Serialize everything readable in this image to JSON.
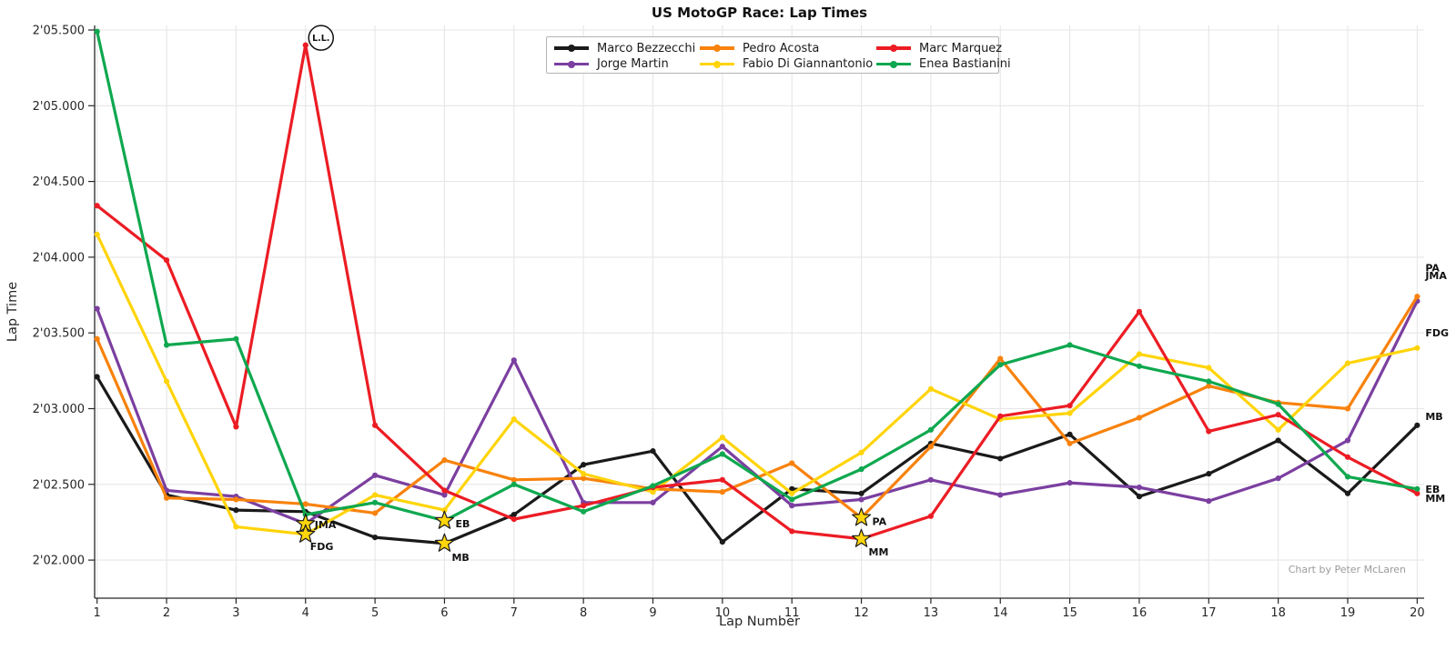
{
  "title": "US MotoGP Race: Lap Times",
  "credit": "Chart by Peter McLaren",
  "axes": {
    "x_label": "Lap Number",
    "y_label": "Lap Time"
  },
  "chart_data": {
    "type": "line",
    "title": "US MotoGP Race: Lap Times",
    "xlabel": "Lap Number",
    "ylabel": "Lap Time",
    "x": [
      1,
      2,
      3,
      4,
      5,
      6,
      7,
      8,
      9,
      10,
      11,
      12,
      13,
      14,
      15,
      16,
      17,
      18,
      19,
      20
    ],
    "ylim": [
      121.75,
      125.53
    ],
    "grid": true,
    "legend_position": "top-center",
    "y_ticks": [
      {
        "value": 125.5,
        "label": "2'05.500"
      },
      {
        "value": 125.0,
        "label": "2'05.000"
      },
      {
        "value": 124.5,
        "label": "2'04.500"
      },
      {
        "value": 124.0,
        "label": "2'04.000"
      },
      {
        "value": 123.5,
        "label": "2'03.500"
      },
      {
        "value": 123.0,
        "label": "2'03.000"
      },
      {
        "value": 122.5,
        "label": "2'02.500"
      },
      {
        "value": 122.0,
        "label": "2'02.000"
      }
    ],
    "series": [
      {
        "name": "Marco Bezzecchi",
        "abbr": "MB",
        "color": "#1a1a1a",
        "values": [
          123.21,
          122.43,
          122.33,
          122.32,
          122.15,
          122.11,
          122.3,
          122.63,
          122.72,
          122.12,
          122.47,
          122.44,
          122.77,
          122.67,
          122.83,
          122.42,
          122.57,
          122.79,
          122.44,
          122.89
        ],
        "fastest_lap": 6,
        "star_label_offset": [
          4,
          19
        ]
      },
      {
        "name": "Jorge Martin",
        "abbr": "JMA",
        "color": "#7b3fa0",
        "values": [
          123.66,
          122.46,
          122.42,
          122.24,
          122.56,
          122.43,
          123.32,
          122.38,
          122.38,
          122.75,
          122.36,
          122.4,
          122.53,
          122.43,
          122.51,
          122.48,
          122.39,
          122.54,
          122.79,
          123.71
        ],
        "fastest_lap": 4,
        "star_label_offset": [
          6,
          5
        ]
      },
      {
        "name": "Pedro Acosta",
        "abbr": "PA",
        "color": "#f8820c",
        "values": [
          123.46,
          122.41,
          122.4,
          122.37,
          122.31,
          122.66,
          122.53,
          122.54,
          122.47,
          122.45,
          122.64,
          122.28,
          122.75,
          123.33,
          122.77,
          122.94,
          123.15,
          123.04,
          123.0,
          123.74
        ],
        "fastest_lap": 12,
        "star_label_offset": [
          8,
          8
        ]
      },
      {
        "name": "Fabio Di Giannantonio",
        "abbr": "FDG",
        "color": "#ffd40a",
        "values": [
          124.15,
          123.18,
          122.22,
          122.17,
          122.43,
          122.33,
          122.93,
          122.57,
          122.45,
          122.81,
          122.44,
          122.71,
          123.13,
          122.93,
          122.97,
          123.36,
          123.27,
          122.86,
          123.3,
          123.4
        ],
        "fastest_lap": 4,
        "star_label_offset": [
          1,
          17
        ]
      },
      {
        "name": "Marc Marquez",
        "abbr": "MM",
        "color": "#ec1c24",
        "values": [
          124.34,
          123.98,
          122.88,
          125.4,
          122.89,
          122.46,
          122.27,
          122.36,
          122.48,
          122.53,
          122.19,
          122.14,
          122.29,
          122.95,
          123.02,
          123.64,
          122.85,
          122.96,
          122.68,
          122.44
        ],
        "fastest_lap": 12,
        "star_label_offset": [
          4,
          18
        ]
      },
      {
        "name": "Enea Bastianini",
        "abbr": "EB",
        "color": "#0fa84f",
        "values": [
          125.49,
          123.42,
          123.46,
          122.3,
          122.38,
          122.26,
          122.5,
          122.32,
          122.49,
          122.7,
          122.4,
          122.6,
          122.86,
          123.29,
          123.42,
          123.28,
          123.18,
          123.03,
          122.55,
          122.47
        ],
        "fastest_lap": 6,
        "star_label_offset": [
          8,
          7
        ]
      }
    ],
    "annotations": {
      "lap_record": {
        "label": "L.L.",
        "series": "Marc Marquez",
        "lap": 4,
        "value": 125.4
      },
      "end_labels": [
        {
          "label": "PA",
          "value": 123.93
        },
        {
          "label": "JMA",
          "value": 123.88
        },
        {
          "label": "FDG",
          "value": 123.5
        },
        {
          "label": "MB",
          "value": 122.95
        },
        {
          "label": "EB",
          "value": 122.47
        },
        {
          "label": "MM",
          "value": 122.41
        }
      ],
      "star_color": "#FFD60A"
    }
  }
}
